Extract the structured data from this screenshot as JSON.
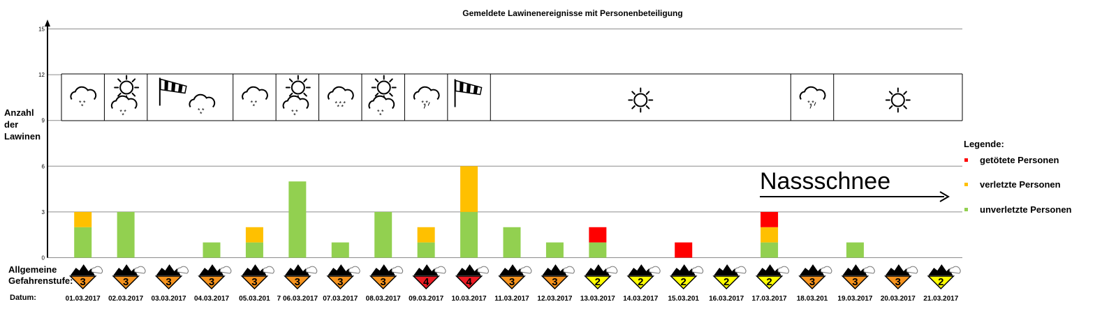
{
  "chart_data": {
    "type": "bar",
    "stacked": true,
    "title": "Gemeldete Lawinenereignisse mit Personenbeteiligung",
    "ylabel": "Anzahl\nder\nLawinen",
    "ylim": [
      0,
      15
    ],
    "yticks": [
      "0",
      "3",
      "6",
      "9",
      "12",
      "15"
    ],
    "grid": true,
    "categories": [
      "01.03.2017",
      "02.03.2017",
      "03.03.2017",
      "04.03.2017",
      "05.03.201",
      "7 06.03.2017",
      "07.03.2017",
      "08.03.2017",
      "09.03.2017",
      "10.03.2017",
      "11.03.2017",
      "12.03.2017",
      "13.03.2017",
      "14.03.2017",
      "15.03.201",
      "16.03.2017",
      "17.03.2017",
      "18.03.201",
      "19.03.2017",
      "20.03.2017",
      "21.03.2017"
    ],
    "series": [
      {
        "name": "unverletzte Personen",
        "color": "#92d050",
        "values": [
          2,
          3,
          0,
          1,
          1,
          5,
          1,
          3,
          1,
          3,
          2,
          1,
          1,
          0,
          0,
          0,
          1,
          0,
          1,
          0,
          0
        ]
      },
      {
        "name": "verletzte Personen",
        "color": "#ffc000",
        "values": [
          1,
          0,
          0,
          0,
          1,
          0,
          0,
          0,
          1,
          3,
          0,
          0,
          0,
          0,
          0,
          0,
          1,
          0,
          0,
          0,
          0
        ]
      },
      {
        "name": "getötete Personen",
        "color": "#ff0000",
        "values": [
          0,
          0,
          0,
          0,
          0,
          0,
          0,
          0,
          0,
          0,
          0,
          0,
          1,
          0,
          1,
          0,
          1,
          0,
          0,
          0,
          0
        ]
      }
    ],
    "legend": {
      "title": "Legende:",
      "placement": "right",
      "entries": [
        "getötete Personen",
        "verletzte Personen",
        "unverletzte Personen"
      ]
    }
  },
  "annotation": {
    "text": "Nassschnee",
    "arrow": "right-arrow"
  },
  "weather": [
    {
      "days": 1,
      "icons": [
        "cloud-snow-icon"
      ]
    },
    {
      "days": 1,
      "icons": [
        "sun-icon",
        "cloud-snow-icon"
      ]
    },
    {
      "days": 2,
      "icons": [
        "windsock-icon",
        "cloud-snow-icon"
      ]
    },
    {
      "days": 1,
      "icons": [
        "cloud-snow-icon"
      ]
    },
    {
      "days": 1,
      "icons": [
        "sun-icon",
        "cloud-snow-icon"
      ]
    },
    {
      "days": 1,
      "icons": [
        "cloud-heavy-snow-icon"
      ]
    },
    {
      "days": 1,
      "icons": [
        "sun-icon",
        "cloud-snow-icon"
      ]
    },
    {
      "days": 1,
      "icons": [
        "cloud-sleet-icon"
      ]
    },
    {
      "days": 1,
      "icons": [
        "windsock-icon"
      ]
    },
    {
      "days": 7,
      "icons": [
        "sun-icon"
      ]
    },
    {
      "days": 1,
      "icons": [
        "cloud-sleet-icon"
      ]
    },
    {
      "days": 3,
      "icons": [
        "sun-icon"
      ]
    }
  ],
  "danger": {
    "label": "Allgemeine\nGefahrenstufe:",
    "levels": [
      "3",
      "3",
      "3",
      "3",
      "3",
      "3",
      "3",
      "3",
      "4",
      "4",
      "3",
      "3",
      "2",
      "2",
      "2",
      "2",
      "2",
      "3",
      "3",
      "3",
      "2"
    ],
    "colors": {
      "2": "#ffff00",
      "3": "#f7941d",
      "4": "#ed1c24"
    }
  },
  "date_label": "Datum:"
}
